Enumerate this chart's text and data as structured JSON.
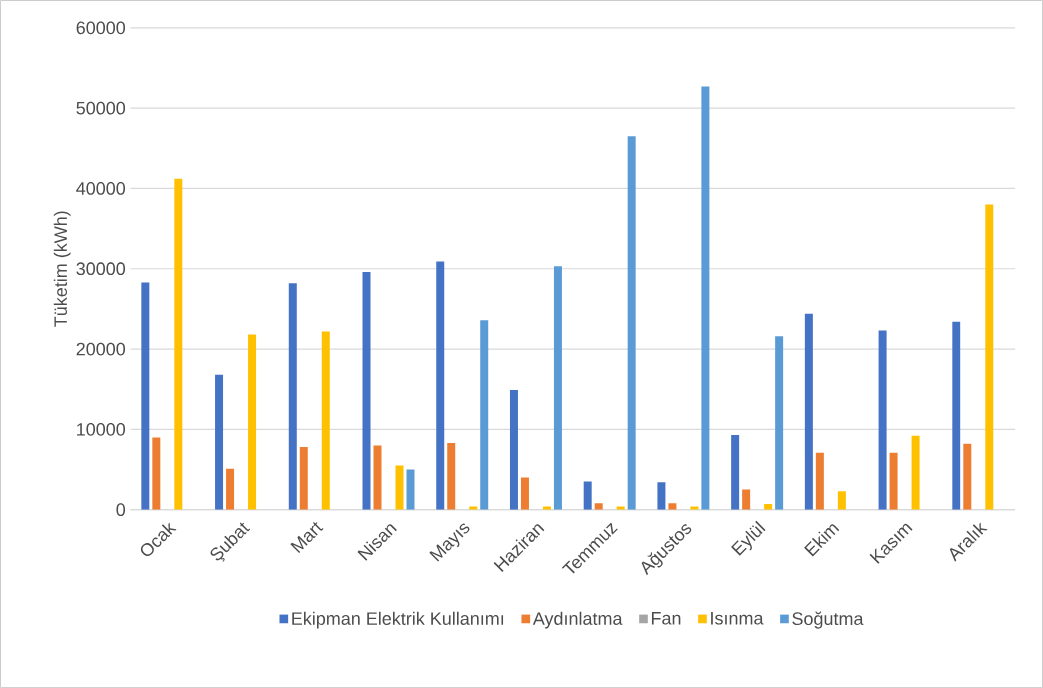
{
  "chart_data": {
    "type": "bar",
    "ylabel": "Tüketim (kWh)",
    "categories": [
      "Ocak",
      "Şubat",
      "Mart",
      "Nisan",
      "Mayıs",
      "Haziran",
      "Temmuz",
      "Ağustos",
      "Eylül",
      "Ekim",
      "Kasım",
      "Aralık"
    ],
    "series": [
      {
        "name": "Ekipman Elektrik Kullanımı",
        "color": "#4472c4",
        "values": [
          28300,
          16800,
          28200,
          29600,
          30900,
          14900,
          3500,
          3400,
          9300,
          24400,
          22300,
          23400
        ]
      },
      {
        "name": "Aydınlatma",
        "color": "#ed7d31",
        "values": [
          9000,
          5100,
          7800,
          8000,
          8300,
          4000,
          800,
          800,
          2500,
          7100,
          7100,
          8200
        ]
      },
      {
        "name": "Fan",
        "color": "#a5a5a5",
        "values": [
          0,
          0,
          0,
          0,
          0,
          0,
          0,
          0,
          0,
          0,
          0,
          0
        ]
      },
      {
        "name": "Isınma",
        "color": "#ffc000",
        "values": [
          41200,
          21800,
          22200,
          5500,
          400,
          400,
          400,
          400,
          700,
          2300,
          9200,
          38000
        ]
      },
      {
        "name": "Soğutma",
        "color": "#5b9bd5",
        "values": [
          0,
          0,
          0,
          5000,
          23600,
          30300,
          46500,
          52700,
          21600,
          0,
          0,
          0
        ]
      }
    ],
    "ylim": [
      0,
      60000
    ],
    "yticks": [
      0,
      10000,
      20000,
      30000,
      40000,
      50000,
      60000
    ],
    "grid": "y",
    "legend": "bottom"
  }
}
